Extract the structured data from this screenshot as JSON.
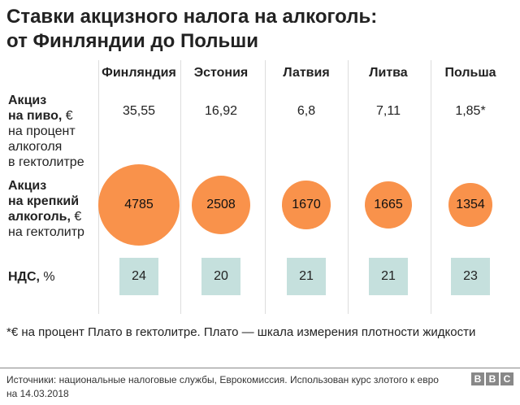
{
  "title_lines": [
    "Ставки акцизного налога на алкоголь:",
    "от Финляндии до Польши"
  ],
  "chart_data": {
    "type": "table",
    "categories": [
      "Финляндия",
      "Эстония",
      "Латвия",
      "Литва",
      "Польша"
    ],
    "rows": [
      {
        "label_bold": "Акциз на пиво,",
        "label_unit": " €",
        "label_rest": "на процент алкоголя в гектолитре",
        "values": [
          "35,55",
          "16,92",
          "6,8",
          "7,11",
          "1,85*"
        ]
      },
      {
        "label_bold": "Акциз на крепкий алкоголь,",
        "label_unit": " €",
        "label_rest": "на гектолитр",
        "values": [
          4785,
          2508,
          1670,
          1665,
          1354
        ],
        "encoding": "circle-area"
      },
      {
        "label_bold": "НДС,",
        "label_unit": " %",
        "values": [
          24,
          20,
          21,
          21,
          23
        ]
      }
    ],
    "colors": {
      "circle": "#f9924b",
      "vat": "#c5e0dd"
    }
  },
  "labels": {
    "beer": [
      "Акциз",
      "на пиво,",
      " €",
      "на процент",
      "алкоголя",
      "в гектолитре"
    ],
    "spirits": [
      "Акциз",
      "на крепкий",
      "алкоголь,",
      " €",
      "на гектолитр"
    ],
    "vat": [
      "НДС,",
      " %"
    ]
  },
  "note": "*€ на процент Плато в гектолитре. Плато — шкала измерения плотности жидкости",
  "source": "Источники: национальные налоговые службы, Еврокомиссия. Использован курс злотого к евро на 14.03.2018",
  "logo": [
    "B",
    "B",
    "C"
  ]
}
